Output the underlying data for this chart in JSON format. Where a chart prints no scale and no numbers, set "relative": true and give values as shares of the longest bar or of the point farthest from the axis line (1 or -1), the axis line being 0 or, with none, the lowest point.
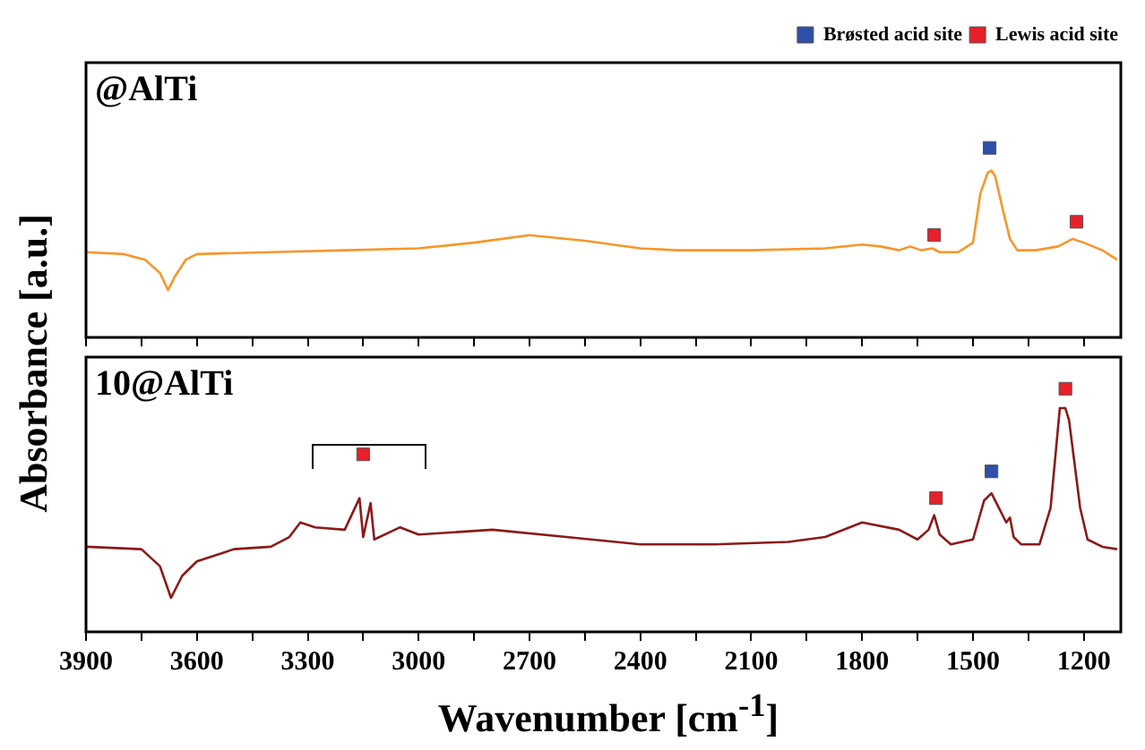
{
  "chart_data": [
    {
      "type": "line",
      "title": "@AlTi",
      "ylabel": "Absorbance [a.u.]",
      "relative": true,
      "legend": "top right",
      "tick_labels": false,
      "xlim": [
        3900,
        1100
      ],
      "xticks": [
        {
          "value": 3900,
          "label": null
        },
        {
          "value": 3750,
          "label": null
        },
        {
          "value": 3600,
          "label": null
        },
        {
          "value": 3450,
          "label": null
        },
        {
          "value": 3300,
          "label": null
        },
        {
          "value": 3150,
          "label": null
        },
        {
          "value": 3000,
          "label": null
        },
        {
          "value": 2850,
          "label": null
        },
        {
          "value": 2700,
          "label": null
        },
        {
          "value": 2550,
          "label": null
        },
        {
          "value": 2400,
          "label": null
        },
        {
          "value": 2250,
          "label": null
        },
        {
          "value": 2100,
          "label": null
        },
        {
          "value": 1950,
          "label": null
        },
        {
          "value": 1800,
          "label": null
        },
        {
          "value": 1650,
          "label": null
        },
        {
          "value": 1500,
          "label": null
        },
        {
          "value": 1350,
          "label": null
        },
        {
          "value": 1200,
          "label": null
        }
      ],
      "series": [
        {
          "type": "line",
          "color": "#f7962a",
          "x": [
            3900,
            3800,
            3740,
            3700,
            3678,
            3660,
            3630,
            3600,
            3400,
            3200,
            3000,
            2850,
            2700,
            2550,
            2400,
            2300,
            2100,
            1900,
            1800,
            1750,
            1700,
            1670,
            1640,
            1610,
            1590,
            1540,
            1500,
            1480,
            1460,
            1450,
            1440,
            1420,
            1400,
            1380,
            1330,
            1270,
            1230,
            1200,
            1150,
            1110
          ],
          "values": [
            0.45,
            0.44,
            0.41,
            0.34,
            0.25,
            0.32,
            0.41,
            0.44,
            0.45,
            0.46,
            0.47,
            0.5,
            0.54,
            0.51,
            0.47,
            0.46,
            0.46,
            0.47,
            0.49,
            0.48,
            0.46,
            0.48,
            0.46,
            0.47,
            0.45,
            0.45,
            0.5,
            0.76,
            0.87,
            0.88,
            0.85,
            0.68,
            0.52,
            0.46,
            0.46,
            0.48,
            0.52,
            0.5,
            0.46,
            0.41
          ]
        },
        {
          "type": "scatter",
          "name": "Brøsted acid site",
          "marker": "square",
          "color": "#2f4fa8",
          "x": [
            1455
          ],
          "values": [
            1.0
          ]
        },
        {
          "type": "scatter",
          "name": "Lewis acid site",
          "marker": "square",
          "color": "#e8202a",
          "x": [
            1605,
            1220
          ],
          "values": [
            0.54,
            0.61
          ]
        }
      ]
    },
    {
      "type": "line",
      "title": "10@AlTi",
      "xlabel": "Wavenumber [cm$^{-1}$]",
      "relative": true,
      "tick_labels": "x",
      "xlim": [
        3900,
        1100
      ],
      "xticks": [
        3900,
        {
          "value": 3750,
          "label": null
        },
        3600,
        {
          "value": 3450,
          "label": null
        },
        3300,
        {
          "value": 3150,
          "label": null
        },
        3000,
        {
          "value": 2850,
          "label": null
        },
        2700,
        {
          "value": 2550,
          "label": null
        },
        2400,
        {
          "value": 2250,
          "label": null
        },
        2100,
        {
          "value": 1950,
          "label": null
        },
        1800,
        {
          "value": 1650,
          "label": null
        },
        1500,
        {
          "value": 1350,
          "label": null
        },
        1200
      ],
      "series": [
        {
          "type": "line",
          "color": "#8b1a1a",
          "x": [
            3900,
            3750,
            3700,
            3670,
            3640,
            3600,
            3500,
            3400,
            3350,
            3320,
            3280,
            3200,
            3160,
            3150,
            3130,
            3120,
            3050,
            3000,
            2800,
            2600,
            2400,
            2200,
            2000,
            1900,
            1800,
            1700,
            1650,
            1620,
            1605,
            1590,
            1560,
            1500,
            1470,
            1450,
            1430,
            1410,
            1400,
            1390,
            1370,
            1320,
            1290,
            1265,
            1250,
            1240,
            1210,
            1190,
            1150,
            1110
          ],
          "values": [
            0.35,
            0.34,
            0.27,
            0.14,
            0.23,
            0.29,
            0.34,
            0.35,
            0.39,
            0.45,
            0.43,
            0.42,
            0.55,
            0.39,
            0.53,
            0.38,
            0.43,
            0.4,
            0.42,
            0.39,
            0.36,
            0.36,
            0.37,
            0.39,
            0.45,
            0.42,
            0.38,
            0.42,
            0.48,
            0.4,
            0.36,
            0.38,
            0.54,
            0.57,
            0.51,
            0.45,
            0.47,
            0.39,
            0.36,
            0.36,
            0.51,
            0.92,
            0.92,
            0.87,
            0.51,
            0.38,
            0.35,
            0.34
          ]
        },
        {
          "type": "scatter",
          "marker": "square",
          "color": "#2f4fa8",
          "x": [
            1450
          ],
          "values": [
            0.66
          ]
        },
        {
          "type": "scatter",
          "marker": "square",
          "color": "#e8202a",
          "x": [
            3150,
            1600,
            1250
          ],
          "values": [
            0.73,
            0.55,
            1.0
          ]
        }
      ]
    }
  ]
}
